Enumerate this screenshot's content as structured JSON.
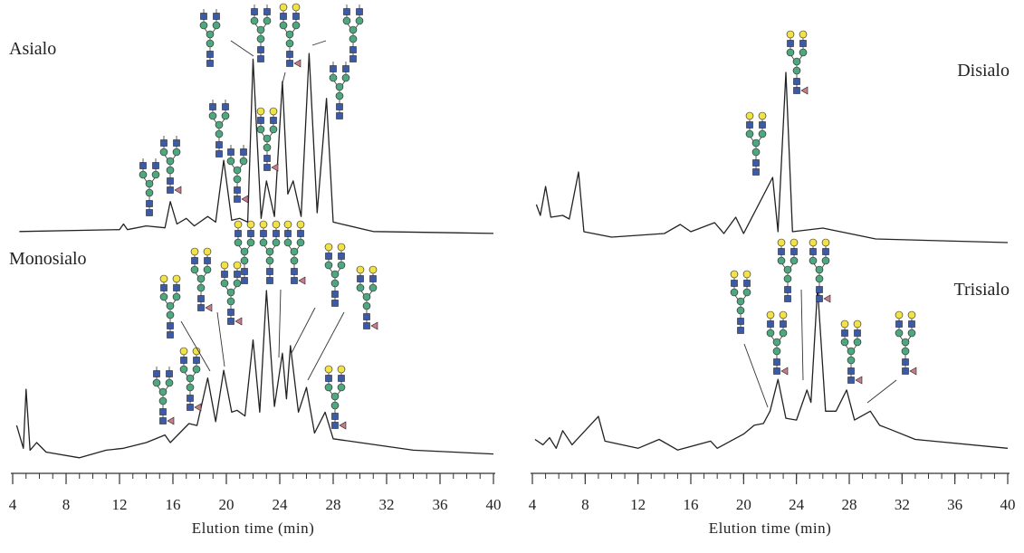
{
  "chart_data": [
    {
      "type": "line",
      "xlabel": "Elution time (min)",
      "xlim": [
        4,
        40
      ],
      "xticks": [
        4,
        8,
        12,
        16,
        20,
        24,
        28,
        32,
        36,
        40
      ],
      "ylim": [
        0,
        100
      ],
      "series": [
        {
          "name": "Asialo",
          "color": "#222222",
          "x": [
            4.5,
            12.0,
            12.3,
            12.6,
            14.0,
            15.4,
            15.8,
            16.3,
            17.0,
            17.6,
            18.6,
            19.2,
            19.8,
            20.4,
            21.0,
            21.6,
            22.0,
            22.6,
            23.0,
            23.6,
            24.2,
            24.6,
            25.0,
            25.6,
            26.2,
            26.8,
            27.5,
            28.0,
            28.6,
            31.0,
            40.0
          ],
          "values": [
            3,
            4,
            7,
            4,
            6,
            5,
            19,
            7,
            10,
            6,
            11,
            8,
            41,
            9,
            10,
            8,
            95,
            10,
            30,
            11,
            83,
            23,
            30,
            11,
            98,
            13,
            74,
            8,
            7,
            3,
            2
          ]
        },
        {
          "name": "Monosialo",
          "color": "#222222",
          "x": [
            4.3,
            4.8,
            5.0,
            5.3,
            5.8,
            6.5,
            9.0,
            11.0,
            12.3,
            14.0,
            15.4,
            15.8,
            17.2,
            17.8,
            18.6,
            19.2,
            19.8,
            20.4,
            20.8,
            21.4,
            22.0,
            22.5,
            23.0,
            23.6,
            24.2,
            24.5,
            24.8,
            25.4,
            26.0,
            26.6,
            27.4,
            28.0,
            30.0,
            34.0,
            40.0
          ],
          "values": [
            19,
            7,
            38,
            6,
            10,
            5,
            2,
            6,
            7,
            10,
            14,
            10,
            20,
            19,
            44,
            21,
            48,
            26,
            27,
            24,
            64,
            26,
            90,
            29,
            57,
            33,
            61,
            26,
            39,
            15,
            26,
            12,
            10,
            6,
            4
          ]
        }
      ]
    },
    {
      "type": "line",
      "xlabel": "Elution time (min)",
      "xlim": [
        4,
        40
      ],
      "xticks": [
        4,
        8,
        12,
        16,
        20,
        24,
        28,
        32,
        36,
        40
      ],
      "ylim": [
        0,
        100
      ],
      "series": [
        {
          "name": "Disialo",
          "color": "#222222",
          "x": [
            4.3,
            4.6,
            5.0,
            5.4,
            6.3,
            6.8,
            7.5,
            7.9,
            10.0,
            14.0,
            15.2,
            16.0,
            17.8,
            18.5,
            19.4,
            20.0,
            22.2,
            22.6,
            23.2,
            23.7,
            26.0,
            30.0,
            40.0
          ],
          "values": [
            22,
            16,
            32,
            15,
            16,
            14,
            40,
            7,
            4,
            6,
            11,
            7,
            12,
            6,
            15,
            6,
            37,
            7,
            95,
            7,
            9,
            3,
            1
          ]
        },
        {
          "name": "Trisialo",
          "color": "#222222",
          "x": [
            4.2,
            4.8,
            5.3,
            5.8,
            6.3,
            7.0,
            9.0,
            9.5,
            12.0,
            13.6,
            15.0,
            17.5,
            18.0,
            20.0,
            20.8,
            21.5,
            22.0,
            22.6,
            23.2,
            24.0,
            24.8,
            25.1,
            25.6,
            26.2,
            27.0,
            27.8,
            28.4,
            29.6,
            30.3,
            31.0,
            33.0,
            40.0
          ],
          "values": [
            10,
            7,
            11,
            5,
            15,
            7,
            23,
            9,
            5,
            10,
            4,
            9,
            5,
            13,
            18,
            19,
            26,
            44,
            22,
            21,
            38,
            31,
            96,
            26,
            26,
            38,
            21,
            26,
            18,
            16,
            10,
            5
          ]
        }
      ]
    }
  ]
}
